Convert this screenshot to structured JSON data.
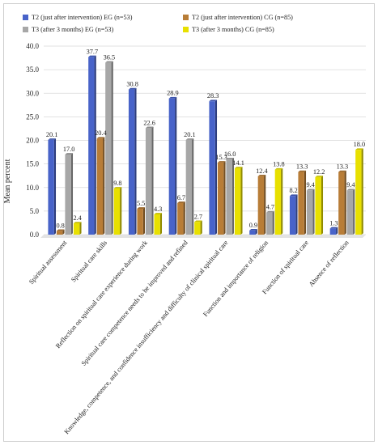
{
  "chart_data": {
    "type": "bar",
    "ylabel": "Mean percent",
    "ylim": [
      0,
      40
    ],
    "yticks": [
      "0.0",
      "5.0",
      "10.0",
      "15.0",
      "20.0",
      "25.0",
      "30.0",
      "35.0",
      "40.0"
    ],
    "grid": true,
    "legend_position": "top",
    "categories": [
      "Spiritual assessment",
      "Spiritual care skills",
      "Reflection on spiritual care experience during work",
      "Spiritual care competence needs to be improved and refined",
      "Knowledge, competence, and confidence insufficiency and difficulty of clinical spiritual care",
      "Function and importance of religion",
      "Function of spiritual care",
      "Absence of reflection"
    ],
    "series": [
      {
        "name": "T2 (just after intervention) EG (n=53)",
        "color": "#4863c9",
        "values": [
          20.1,
          37.7,
          30.8,
          28.9,
          28.3,
          0.9,
          8.2,
          1.3
        ]
      },
      {
        "name": "T2 (just after intervention) CG (n=85)",
        "color": "#b87d37",
        "values": [
          0.8,
          20.4,
          5.5,
          6.7,
          15.3,
          12.4,
          13.3,
          13.3
        ]
      },
      {
        "name": "T3 (after 3 months) EG (n=53)",
        "color": "#a7a7a7",
        "values": [
          17.0,
          36.5,
          22.6,
          20.1,
          16.0,
          4.7,
          9.4,
          9.4
        ]
      },
      {
        "name": "T3 (after 3 months) CG (n=85)",
        "color": "#e8e000",
        "values": [
          2.4,
          9.8,
          4.3,
          2.7,
          14.1,
          13.8,
          12.2,
          18.0
        ]
      }
    ]
  }
}
